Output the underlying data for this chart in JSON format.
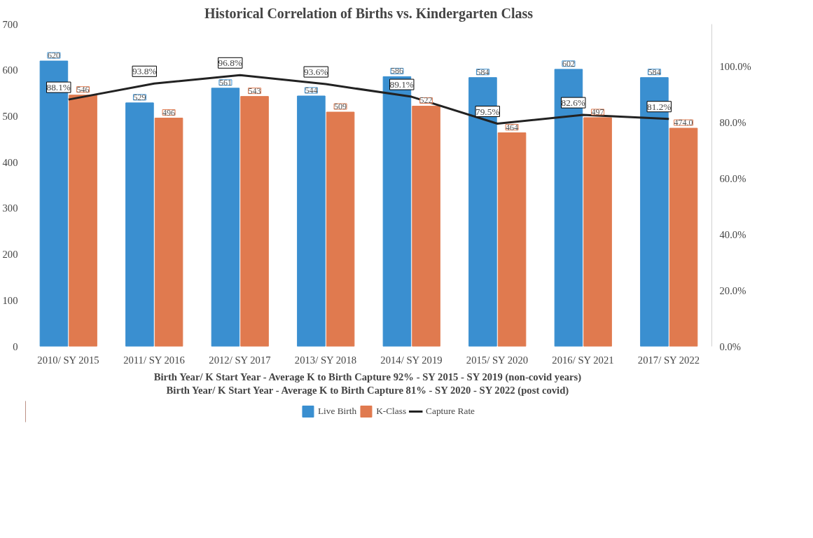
{
  "chart_data": {
    "type": "bar",
    "title": "Historical Correlation of Births vs. Kindergarten Class",
    "categories": [
      "2010/ SY 2015",
      "2011/ SY 2016",
      "2012/ SY 2017",
      "2013/ SY 2018",
      "2014/ SY 2019",
      "2015/ SY 2020",
      "2016/ SY 2021",
      "2017/ SY 2022"
    ],
    "series": [
      {
        "name": "Live Birth",
        "color": "#3a8fd0",
        "values": [
          620,
          529,
          561,
          544,
          586,
          584,
          602,
          584
        ],
        "value_labels": [
          "620",
          "529",
          "561",
          "544",
          "586",
          "584",
          "602",
          "584"
        ]
      },
      {
        "name": "K-Class",
        "color": "#e07a4f",
        "values": [
          546,
          496,
          543,
          509,
          522,
          464,
          497,
          474
        ],
        "value_labels": [
          "546",
          "496",
          "543",
          "509",
          "522",
          "464",
          "497",
          "474.0"
        ]
      },
      {
        "name": "Capture Rate",
        "type": "line",
        "axis": "y2",
        "color": "#222222",
        "values": [
          88.1,
          93.8,
          96.8,
          93.6,
          89.1,
          79.5,
          82.6,
          81.2
        ],
        "value_labels": [
          "88.1%",
          "93.8%",
          "96.8%",
          "93.6%",
          "89.1%",
          "79.5%",
          "82.6%",
          "81.2%"
        ]
      }
    ],
    "xlabel": "Birth Year/ K Start Year - Average K to Birth Capture 92% - SY 2015 - SY 2019 (non-covid years)",
    "annotations": [
      "Birth Year/ K Start Year - Average K to Birth Capture 81% - SY 2020 - SY 2022 (post covid)"
    ],
    "ylim": [
      0,
      700
    ],
    "yticks": [
      0,
      100,
      200,
      300,
      400,
      500,
      600,
      700
    ],
    "y2lim": [
      0,
      115
    ],
    "y2ticks": [
      {
        "value": 0,
        "label": "0.0%"
      },
      {
        "value": 20,
        "label": "20.0%"
      },
      {
        "value": 40,
        "label": "40.0%"
      },
      {
        "value": 60,
        "label": "60.0%"
      },
      {
        "value": 80,
        "label": "80.0%"
      },
      {
        "value": 100,
        "label": "100.0%"
      }
    ],
    "legend": "bottom",
    "grid": false
  }
}
